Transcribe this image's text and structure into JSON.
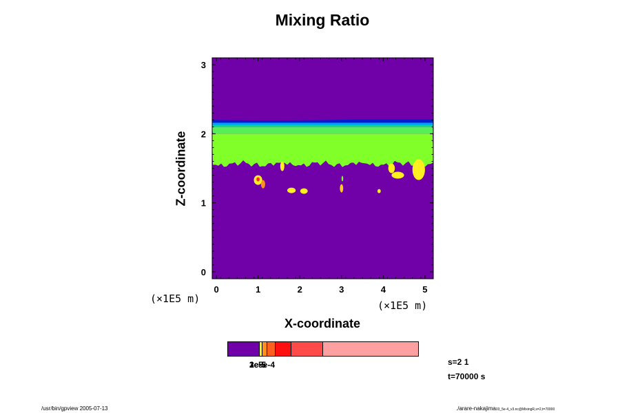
{
  "chart_data": {
    "type": "heatmap",
    "title": "Mixing Ratio",
    "xlabel": "X-coordinate",
    "ylabel": "Z-coordinate",
    "x_unit": "(×1E5 m)",
    "y_unit": "(×1E5 m)",
    "xlim": [
      -0.1,
      5.2
    ],
    "ylim": [
      -0.1,
      3.1
    ],
    "x_ticks": [
      0,
      1,
      2,
      3,
      4,
      5
    ],
    "y_ticks": [
      0,
      1,
      2,
      3
    ],
    "x_tick_labels": [
      "0",
      "1",
      "2",
      "3",
      "4",
      "5"
    ],
    "y_tick_labels": [
      "0",
      "1",
      "2",
      "3"
    ],
    "background_color": "#7000a8",
    "bands": [
      {
        "z_bottom": 1.58,
        "z_top": 2.0,
        "color": "#80ff28"
      },
      {
        "z_bottom": 2.0,
        "z_top": 2.1,
        "color": "#58ee58"
      },
      {
        "z_bottom": 2.1,
        "z_top": 2.13,
        "color": "#00d8a0"
      },
      {
        "z_bottom": 2.13,
        "z_top": 2.16,
        "color": "#00a0ff"
      },
      {
        "z_bottom": 2.16,
        "z_top": 2.2,
        "color": "#0020d0"
      }
    ],
    "patches": [
      {
        "x": 1.0,
        "z": 1.33,
        "rx": 0.1,
        "rz": 0.07,
        "color": "#ffee20"
      },
      {
        "x": 1.12,
        "z": 1.27,
        "rx": 0.05,
        "rz": 0.06,
        "color": "#ff9020"
      },
      {
        "x": 1.0,
        "z": 1.34,
        "rx": 0.04,
        "rz": 0.03,
        "color": "#ff3020"
      },
      {
        "x": 1.8,
        "z": 1.18,
        "rx": 0.1,
        "rz": 0.04,
        "color": "#ffee20"
      },
      {
        "x": 2.1,
        "z": 1.17,
        "rx": 0.09,
        "rz": 0.04,
        "color": "#ffee20"
      },
      {
        "x": 3.0,
        "z": 1.21,
        "rx": 0.04,
        "rz": 0.06,
        "color": "#ffcc20"
      },
      {
        "x": 3.02,
        "z": 1.35,
        "rx": 0.02,
        "rz": 0.04,
        "color": "#80ff28"
      },
      {
        "x": 3.9,
        "z": 1.17,
        "rx": 0.04,
        "rz": 0.03,
        "color": "#ffee20"
      },
      {
        "x": 4.35,
        "z": 1.4,
        "rx": 0.15,
        "rz": 0.05,
        "color": "#ffee20"
      },
      {
        "x": 4.85,
        "z": 1.48,
        "rx": 0.15,
        "rz": 0.15,
        "color": "#ffee20"
      },
      {
        "x": 4.2,
        "z": 1.5,
        "rx": 0.08,
        "rz": 0.07,
        "color": "#ffee20"
      },
      {
        "x": 1.58,
        "z": 1.53,
        "rx": 0.05,
        "rz": 0.07,
        "color": "#ffee20"
      }
    ],
    "colorbar": {
      "segments": [
        {
          "color": "#7000a8",
          "fraction": 0.165
        },
        {
          "color": "#ffee20",
          "fraction": 0.018
        },
        {
          "color": "#ff9020",
          "fraction": 0.022
        },
        {
          "color": "#ff6020",
          "fraction": 0.045
        },
        {
          "color": "#ff1010",
          "fraction": 0.085
        },
        {
          "color": "#ff4a4a",
          "fraction": 0.165
        },
        {
          "color": "#ffa0a0",
          "fraction": 0.5
        }
      ],
      "labels": [
        "1e-5",
        "2e-5",
        "3e-5",
        "5e-4"
      ]
    },
    "info_lines": [
      "s=2 1",
      "t=70000 s"
    ]
  },
  "footer": {
    "left": "/usr/bin/gpview 2005-07-13",
    "right_main": "./arare-nakajima",
    "right_small": "03_5e-4_v3.nc@MixingR,s=2,t=70000"
  }
}
